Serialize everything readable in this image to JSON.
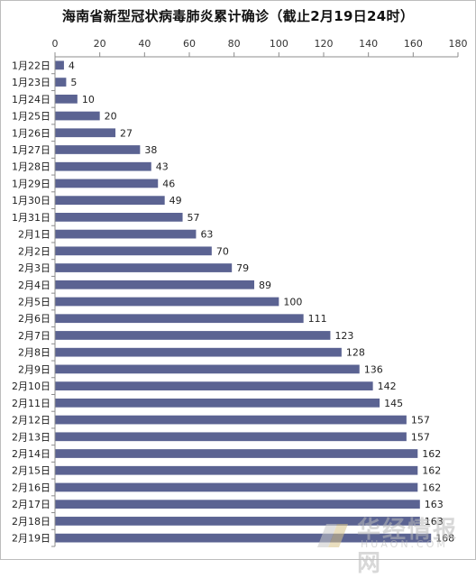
{
  "chart_data": {
    "type": "bar",
    "orientation": "horizontal",
    "title": "海南省新型冠状病毒肺炎累计确诊（截止2月19日24时）",
    "categories": [
      "1月22日",
      "1月23日",
      "1月24日",
      "1月25日",
      "1月26日",
      "1月27日",
      "1月28日",
      "1月29日",
      "1月30日",
      "1月31日",
      "2月1日",
      "2月2日",
      "2月3日",
      "2月4日",
      "2月5日",
      "2月6日",
      "2月7日",
      "2月8日",
      "2月9日",
      "2月10日",
      "2月11日",
      "2月12日",
      "2月13日",
      "2月14日",
      "2月15日",
      "2月16日",
      "2月17日",
      "2月18日",
      "2月19日"
    ],
    "values": [
      4,
      5,
      10,
      20,
      27,
      38,
      43,
      46,
      49,
      57,
      63,
      70,
      79,
      89,
      100,
      111,
      123,
      128,
      136,
      142,
      145,
      157,
      157,
      162,
      162,
      162,
      163,
      163,
      168
    ],
    "xlim": [
      0,
      180
    ],
    "xticks": [
      0,
      20,
      40,
      60,
      80,
      100,
      120,
      140,
      160,
      180
    ],
    "x_axis_position": "top",
    "grid": false,
    "legend": "none",
    "bar_color": "#5b6392"
  },
  "watermark": {
    "text": "华经情报网",
    "sub": "HUAON.COM"
  }
}
